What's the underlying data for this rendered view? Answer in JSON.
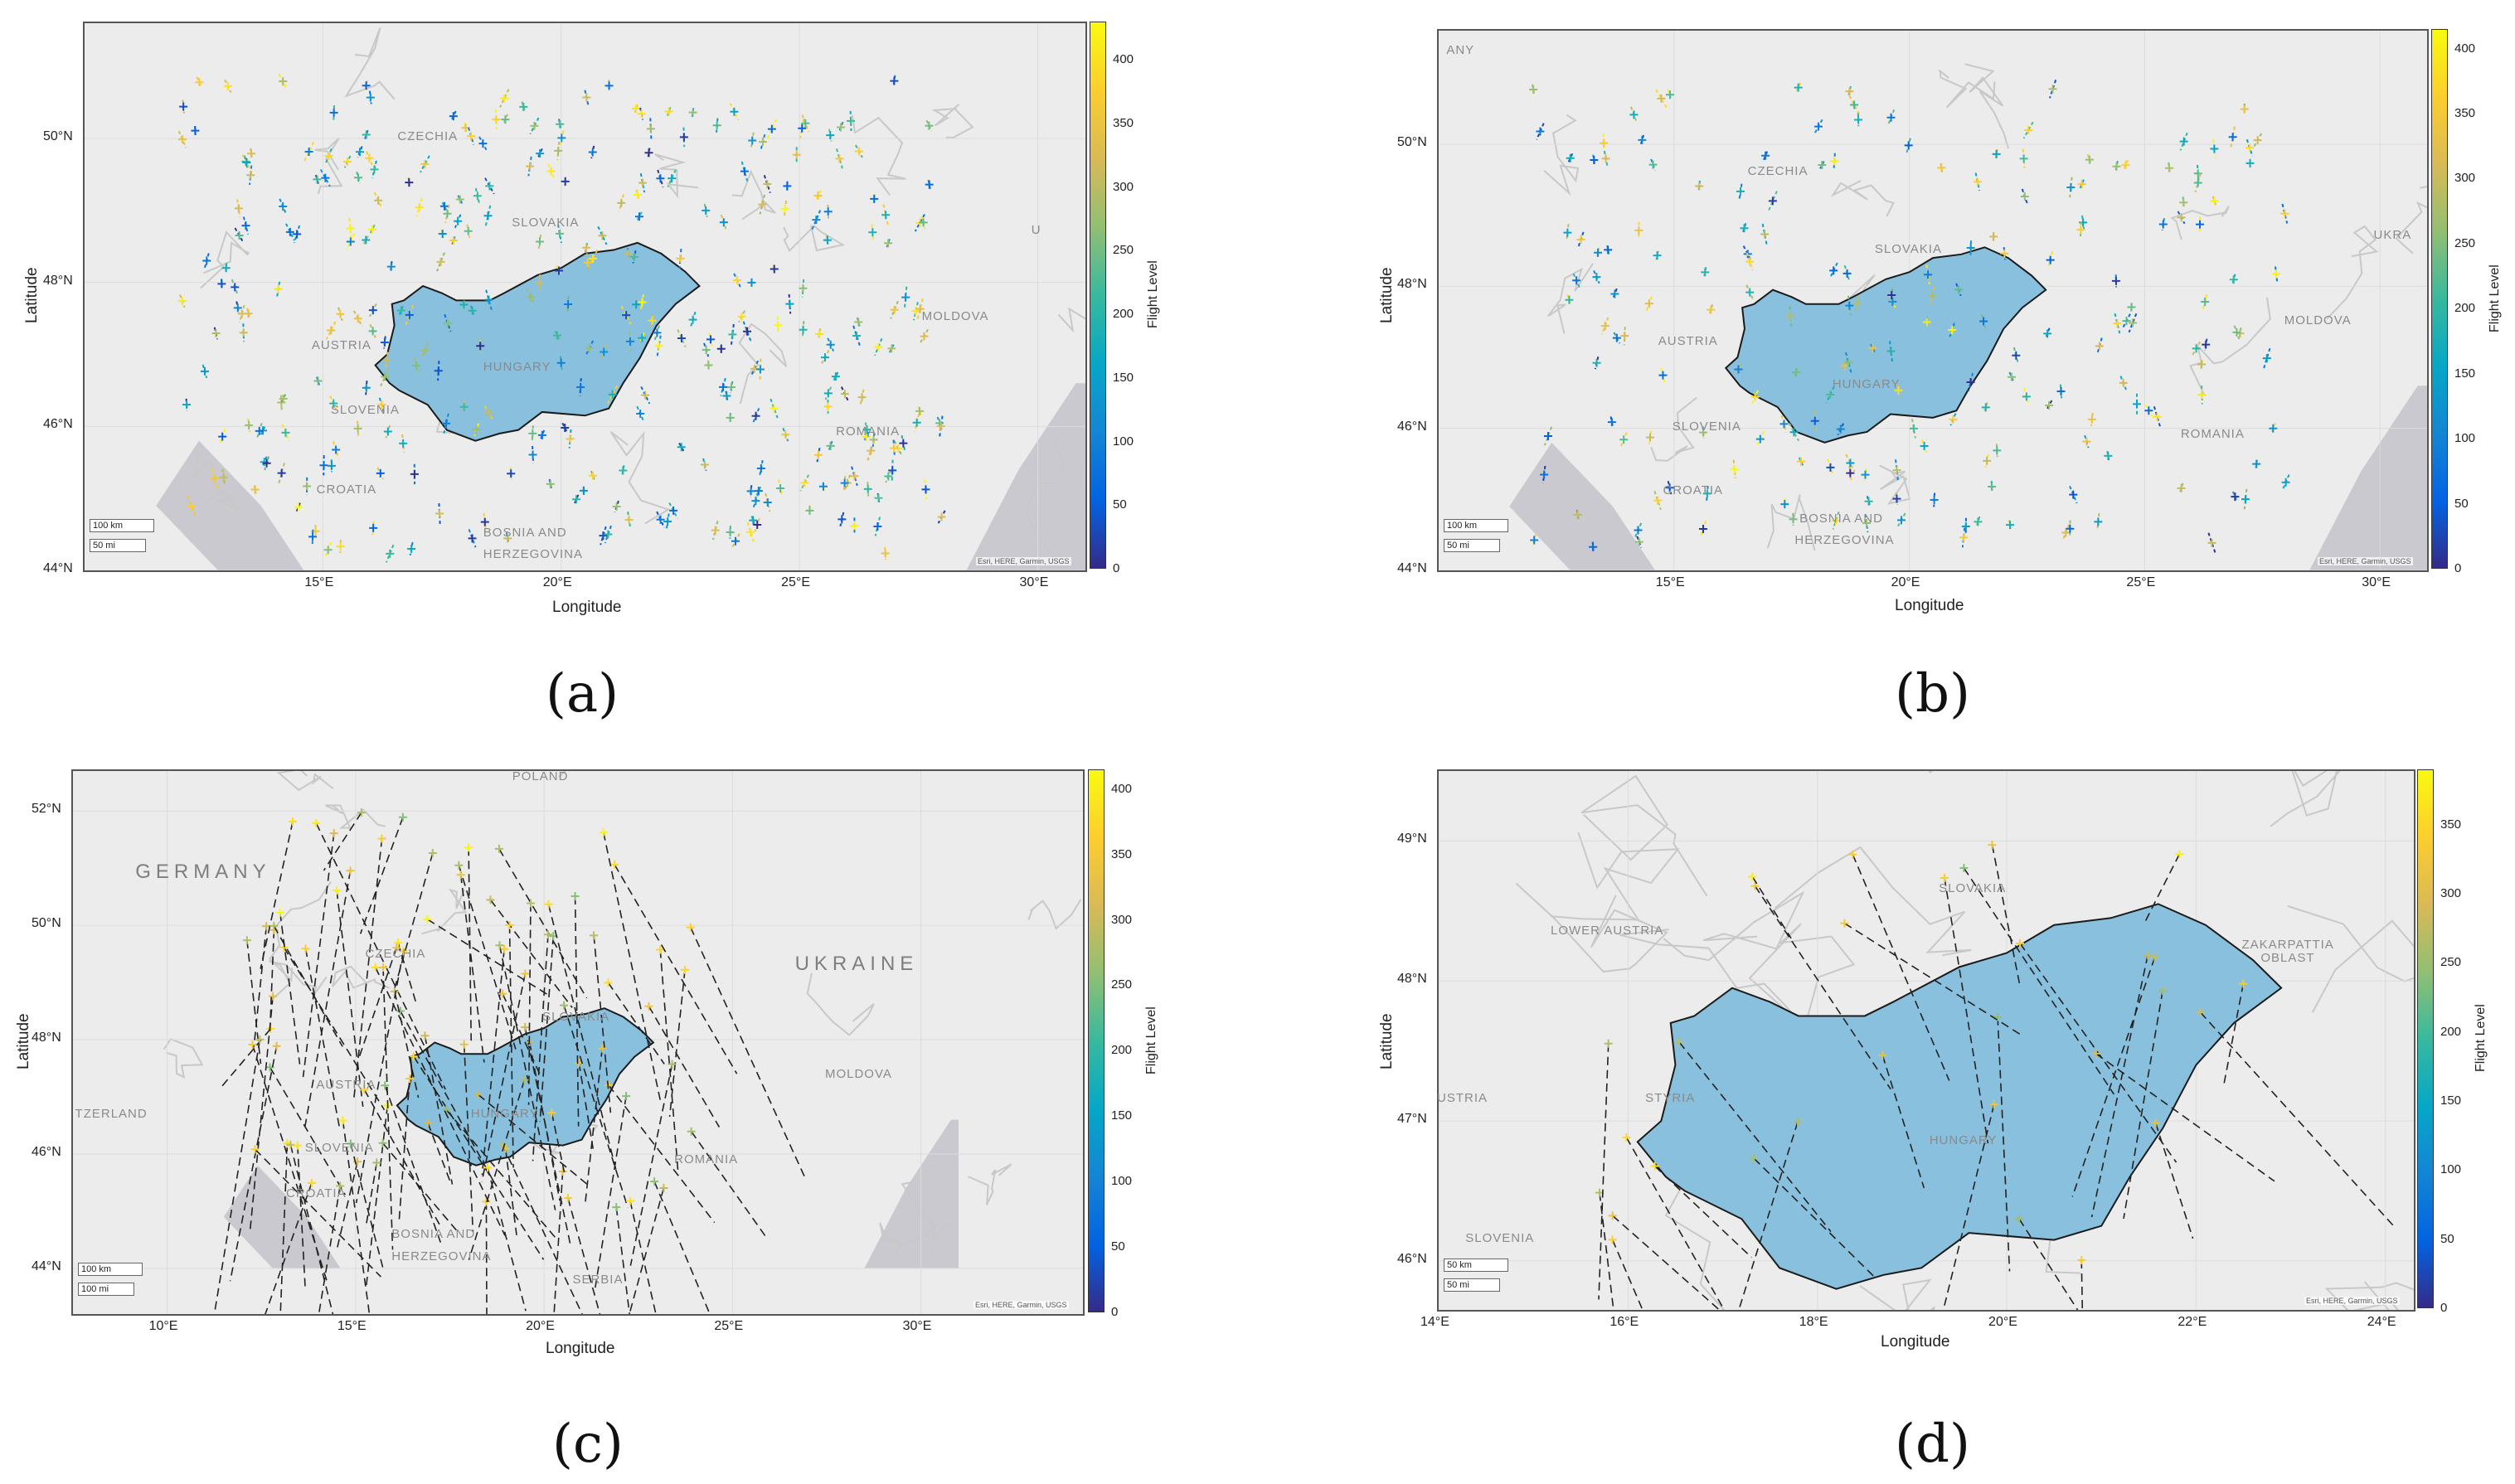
{
  "colors": {
    "hungary_fill": "#88c0dd",
    "hungary_stroke": "#1b1b1b",
    "land": "#ececec",
    "sea": "#c9c9cf",
    "border": "#c8c8c8",
    "parula": [
      "#352a87",
      "#0363e1",
      "#1485d4",
      "#06a7c6",
      "#38b99e",
      "#92bf73",
      "#d9ba56",
      "#fcce2e",
      "#f9fb0e"
    ]
  },
  "panels": [
    {
      "id": "a",
      "label": "(a)",
      "xlabel": "Longitude",
      "ylabel": "Latitude",
      "colorbar_title": "Flight Level",
      "x_ticks": [
        "15°E",
        "20°E",
        "25°E",
        "30°E"
      ],
      "y_ticks": [
        "44°N",
        "46°N",
        "48°N",
        "50°N"
      ],
      "colorbar_ticks": [
        "0",
        "50",
        "100",
        "150",
        "200",
        "250",
        "300",
        "350",
        "400"
      ],
      "colorbar_max": 430,
      "xlim": [
        10,
        31
      ],
      "ylim": [
        44,
        51.6
      ],
      "place_labels": [
        "CZECHIA",
        "SLOVAKIA",
        "AUSTRIA",
        "HUNGARY",
        "SLOVENIA",
        "CROATIA",
        "BOSNIA AND",
        "HERZEGOVINA",
        "ROMANIA",
        "MOLDOVA",
        "U"
      ],
      "scale_km": "100 km",
      "scale_mi": "50 mi",
      "attribution": "Esri, HERE, Garmin, USGS",
      "marker_style": "crosses"
    },
    {
      "id": "b",
      "label": "(b)",
      "xlabel": "Longitude",
      "ylabel": "Latitude",
      "colorbar_title": "Flight Level",
      "x_ticks": [
        "15°E",
        "20°E",
        "25°E",
        "30°E"
      ],
      "y_ticks": [
        "44°N",
        "46°N",
        "48°N",
        "50°N"
      ],
      "colorbar_ticks": [
        "0",
        "50",
        "100",
        "150",
        "200",
        "250",
        "300",
        "350",
        "400"
      ],
      "colorbar_max": 415,
      "xlim": [
        10,
        31
      ],
      "ylim": [
        44,
        51.6
      ],
      "place_labels": [
        "ANY",
        "CZECHIA",
        "SLOVAKIA",
        "AUSTRIA",
        "HUNGARY",
        "SLOVENIA",
        "CROATIA",
        "BOSNIA AND",
        "HERZEGOVINA",
        "ROMANIA",
        "MOLDOVA",
        "UKRA"
      ],
      "scale_km": "100 km",
      "scale_mi": "50 mi",
      "attribution": "Esri, HERE, Garmin, USGS",
      "marker_style": "crosses"
    },
    {
      "id": "c",
      "label": "(c)",
      "xlabel": "Longitude",
      "ylabel": "Latitude",
      "colorbar_title": "Flight Level",
      "x_ticks": [
        "10°E",
        "15°E",
        "20°E",
        "25°E",
        "30°E"
      ],
      "y_ticks": [
        "44°N",
        "46°N",
        "48°N",
        "50°N",
        "52°N"
      ],
      "colorbar_ticks": [
        "0",
        "50",
        "100",
        "150",
        "200",
        "250",
        "300",
        "350",
        "400"
      ],
      "colorbar_max": 415,
      "xlim": [
        7.5,
        34.3
      ],
      "ylim": [
        43.2,
        52.7
      ],
      "place_labels": [
        "POLAND",
        "GERMANY",
        "CZECHIA",
        "SLOVAKIA",
        "UKRAINE",
        "AUSTRIA",
        "HUNGARY",
        "TZERLAND",
        "MOLDOVA",
        "SLOVENIA",
        "ROMANIA",
        "CROATIA",
        "BOSNIA AND",
        "HERZEGOVINA",
        "SERBIA"
      ],
      "scale_km": "100 km",
      "scale_mi": "100 mi",
      "attribution": "Esri, HERE, Garmin, USGS",
      "marker_style": "dashed"
    },
    {
      "id": "d",
      "label": "(d)",
      "xlabel": "Longitude",
      "ylabel": "Latitude",
      "colorbar_title": "Flight Level",
      "x_ticks": [
        "14°E",
        "16°E",
        "18°E",
        "20°E",
        "22°E",
        "24°E"
      ],
      "y_ticks": [
        "46°N",
        "47°N",
        "48°N",
        "49°N"
      ],
      "colorbar_ticks": [
        "0",
        "50",
        "100",
        "150",
        "200",
        "250",
        "300",
        "350"
      ],
      "colorbar_max": 390,
      "xlim": [
        14,
        24.3
      ],
      "ylim": [
        45.65,
        49.5
      ],
      "place_labels": [
        "SLOVAKIA",
        "LOWER AUSTRIA",
        "ZAKARPATTIA",
        "OBLAST",
        "USTRIA",
        "STYRIA",
        "HUNGARY",
        "SLOVENIA"
      ],
      "scale_km": "50 km",
      "scale_mi": "50 mi",
      "attribution": "Esri, HERE, Garmin, USGS",
      "marker_style": "dashed"
    }
  ]
}
